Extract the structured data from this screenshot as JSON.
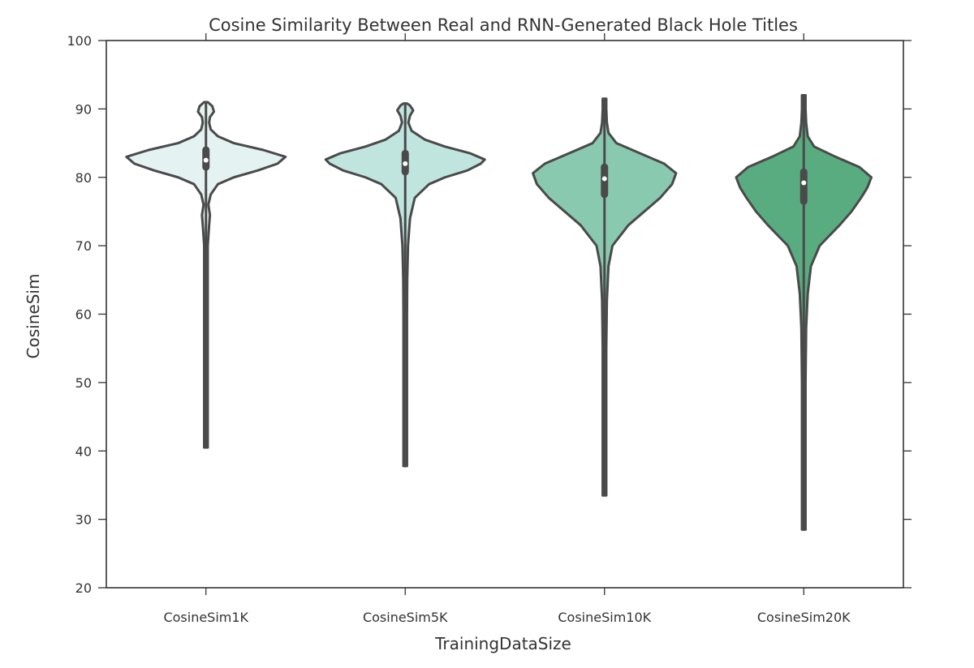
{
  "chart_data": {
    "type": "violin",
    "title": "Cosine Similarity Between Real and RNN-Generated Black Hole Titles",
    "xlabel": "TrainingDataSize",
    "ylabel": "CosineSim",
    "ylim": [
      20,
      100
    ],
    "yticks": [
      20,
      30,
      40,
      50,
      60,
      70,
      80,
      90,
      100
    ],
    "grid": false,
    "categories": [
      "CosineSim1K",
      "CosineSim5K",
      "CosineSim10K",
      "CosineSim20K"
    ],
    "series": [
      {
        "category": "CosineSim1K",
        "color": "#e4f3f1",
        "min": 40.5,
        "q1": 81.5,
        "median": 82.5,
        "q3": 84,
        "max": 91,
        "density": [
          [
            40.5,
            0.01
          ],
          [
            50,
            0.015
          ],
          [
            60,
            0.015
          ],
          [
            70,
            0.02
          ],
          [
            73,
            0.04
          ],
          [
            74.5,
            0.05
          ],
          [
            76,
            0.03
          ],
          [
            77.5,
            0.06
          ],
          [
            79,
            0.15
          ],
          [
            80,
            0.35
          ],
          [
            81,
            0.65
          ],
          [
            82,
            0.9
          ],
          [
            83,
            1.0
          ],
          [
            84,
            0.72
          ],
          [
            85,
            0.35
          ],
          [
            86,
            0.15
          ],
          [
            87,
            0.06
          ],
          [
            88,
            0.04
          ],
          [
            88.8,
            0.05
          ],
          [
            89.6,
            0.1
          ],
          [
            90.4,
            0.08
          ],
          [
            91,
            0.02
          ]
        ]
      },
      {
        "category": "CosineSim5K",
        "color": "#c0e4de",
        "min": 37.8,
        "q1": 80.8,
        "median": 82,
        "q3": 83.5,
        "max": 90.8,
        "density": [
          [
            37.8,
            0.01
          ],
          [
            50,
            0.015
          ],
          [
            60,
            0.02
          ],
          [
            65,
            0.025
          ],
          [
            70,
            0.035
          ],
          [
            74,
            0.06
          ],
          [
            77,
            0.12
          ],
          [
            79,
            0.3
          ],
          [
            80,
            0.5
          ],
          [
            81,
            0.78
          ],
          [
            82,
            0.95
          ],
          [
            82.6,
            1.0
          ],
          [
            83.5,
            0.82
          ],
          [
            84.5,
            0.5
          ],
          [
            85.5,
            0.25
          ],
          [
            86.8,
            0.08
          ],
          [
            88,
            0.04
          ],
          [
            89,
            0.06
          ],
          [
            89.8,
            0.1
          ],
          [
            90.5,
            0.06
          ],
          [
            90.8,
            0.02
          ]
        ]
      },
      {
        "category": "CosineSim10K",
        "color": "#89c9b0",
        "min": 33.5,
        "q1": 77.5,
        "median": 79.8,
        "q3": 81.5,
        "max": 91.5,
        "density": [
          [
            33.5,
            0.01
          ],
          [
            45,
            0.015
          ],
          [
            55,
            0.02
          ],
          [
            62,
            0.03
          ],
          [
            67,
            0.05
          ],
          [
            70,
            0.1
          ],
          [
            73,
            0.3
          ],
          [
            75,
            0.5
          ],
          [
            77,
            0.7
          ],
          [
            79,
            0.85
          ],
          [
            80.6,
            0.9
          ],
          [
            82,
            0.75
          ],
          [
            83.5,
            0.45
          ],
          [
            85,
            0.15
          ],
          [
            86.5,
            0.05
          ],
          [
            88,
            0.03
          ],
          [
            90,
            0.02
          ],
          [
            91.5,
            0.01
          ]
        ]
      },
      {
        "category": "CosineSim20K",
        "color": "#59ac80",
        "min": 28.5,
        "q1": 76.5,
        "median": 79.2,
        "q3": 80.8,
        "max": 92,
        "density": [
          [
            28.5,
            0.01
          ],
          [
            40,
            0.015
          ],
          [
            50,
            0.02
          ],
          [
            58,
            0.03
          ],
          [
            63,
            0.05
          ],
          [
            67,
            0.09
          ],
          [
            70,
            0.2
          ],
          [
            73,
            0.45
          ],
          [
            75,
            0.6
          ],
          [
            77,
            0.72
          ],
          [
            78.5,
            0.8
          ],
          [
            80,
            0.85
          ],
          [
            81.5,
            0.7
          ],
          [
            83,
            0.4
          ],
          [
            84.5,
            0.13
          ],
          [
            86,
            0.05
          ],
          [
            88,
            0.03
          ],
          [
            90,
            0.02
          ],
          [
            92,
            0.01
          ]
        ]
      }
    ]
  }
}
